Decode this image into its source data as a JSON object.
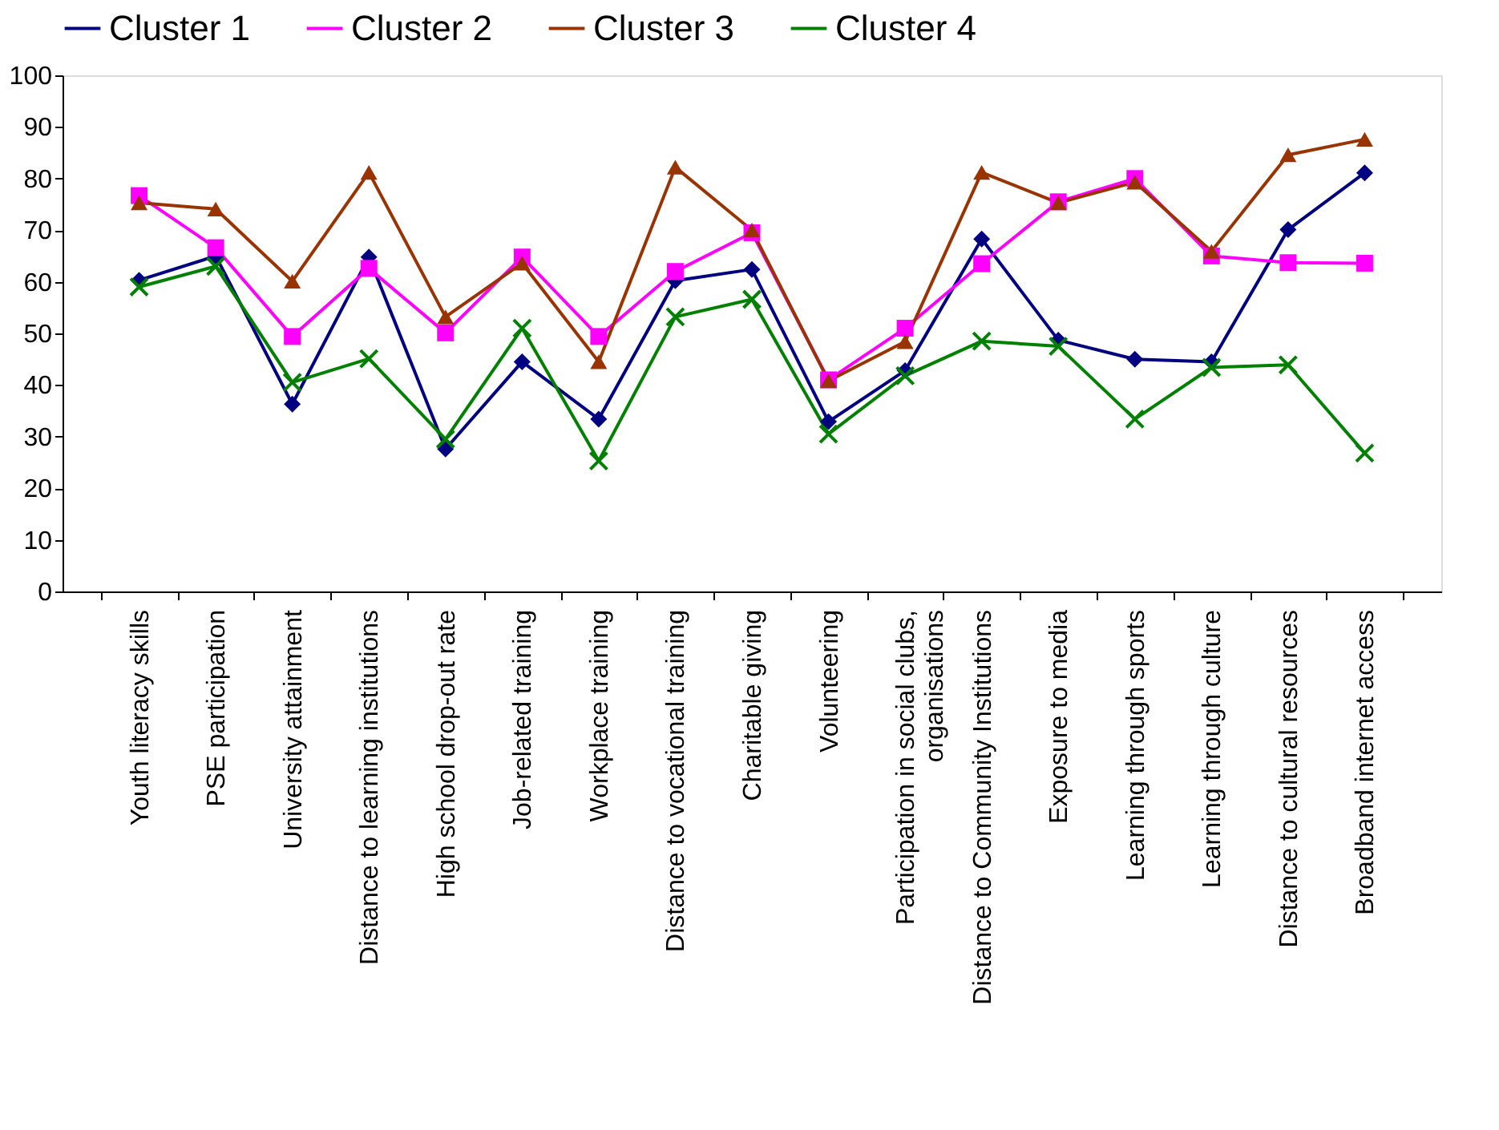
{
  "chart_data": {
    "type": "line",
    "categories": [
      "Youth literacy skills",
      "PSE participation",
      "University attainment",
      "Distance to learning institutions",
      "High school drop-out rate",
      "Job-related training",
      "Workplace training",
      "Distance to vocational training",
      "Charitable giving",
      "Volunteering",
      "Participation in social clubs, organisations",
      "Distance to Community Institutions",
      "Exposure to media",
      "Learning through sports",
      "Learning through culture",
      "Distance to cultural resources",
      "Broadband internet access"
    ],
    "series": [
      {
        "name": "Cluster 1",
        "color": "#000080",
        "marker": "diamond",
        "values": [
          60.3,
          65,
          36.3,
          64.8,
          27.6,
          44.5,
          33.4,
          60.2,
          62.4,
          32.9,
          42.8,
          68.3,
          48.7,
          45,
          44.5,
          70.1,
          81.1
        ]
      },
      {
        "name": "Cluster 2",
        "color": "#ff00ff",
        "marker": "square",
        "values": [
          76.7,
          66.6,
          49.4,
          62.6,
          50.1,
          64.8,
          49.4,
          62,
          69.5,
          41,
          51,
          63.5,
          75.5,
          80,
          65,
          63.7,
          63.6
        ]
      },
      {
        "name": "Cluster 3",
        "color": "#993300",
        "marker": "triangle",
        "values": [
          75.3,
          74.1,
          60.1,
          81.2,
          53.2,
          63.6,
          44.5,
          82.2,
          70,
          40.8,
          48.4,
          81.2,
          75.3,
          79.3,
          65.9,
          84.6,
          87.6
        ]
      },
      {
        "name": "Cluster 4",
        "color": "#008000",
        "marker": "cross",
        "values": [
          59,
          63,
          40.5,
          45.1,
          29.5,
          51,
          25.3,
          53.2,
          56.6,
          30.5,
          41.8,
          48.5,
          47.5,
          33.4,
          43.4,
          43.9,
          26.8
        ]
      }
    ],
    "ylim": [
      0,
      100
    ],
    "yticks": [
      0,
      10,
      20,
      30,
      40,
      50,
      60,
      70,
      80,
      90,
      100
    ],
    "grid": false,
    "legend": "top",
    "line_style": "solid"
  }
}
